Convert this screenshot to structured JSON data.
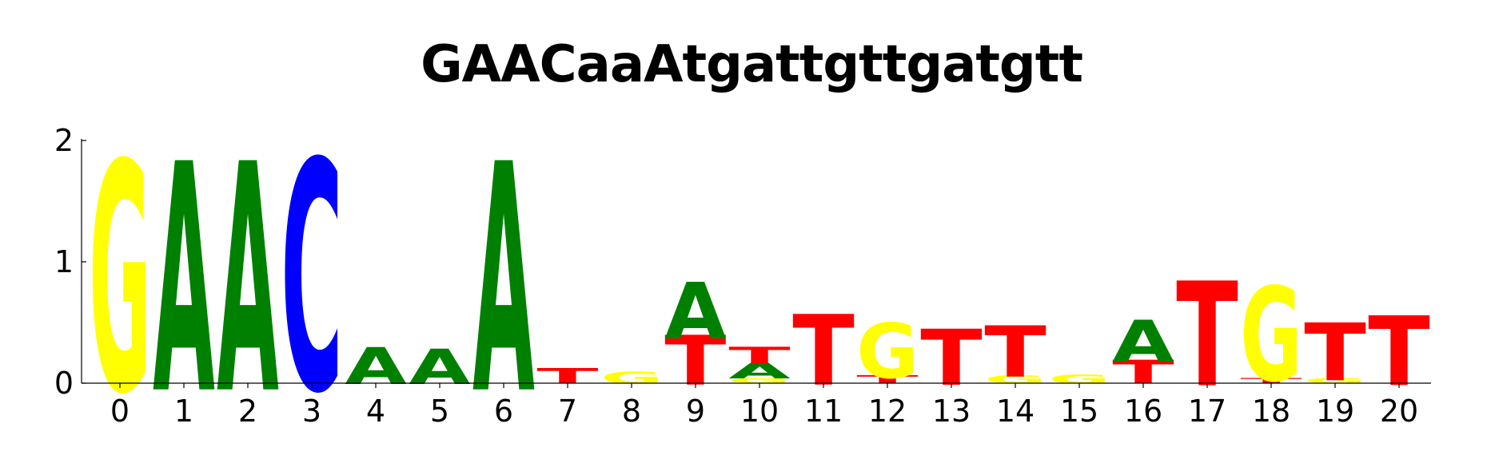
{
  "chart_data": {
    "type": "sequence-logo",
    "title": "GAACaaAtgattgttgatgtt",
    "xlabel": "",
    "ylabel": "",
    "ylim": [
      0,
      2
    ],
    "y_ticks": [
      "0",
      "1",
      "2"
    ],
    "x_ticks": [
      "0",
      "1",
      "2",
      "3",
      "4",
      "5",
      "6",
      "7",
      "8",
      "9",
      "10",
      "11",
      "12",
      "13",
      "14",
      "15",
      "16",
      "17",
      "18",
      "19",
      "20"
    ],
    "colors": {
      "A": "#008000",
      "C": "#0000ff",
      "G": "#ffff00",
      "T": "#ff0000"
    },
    "positions": [
      {
        "pos": "0",
        "stack": [
          {
            "letter": "G",
            "height": 1.75
          }
        ]
      },
      {
        "pos": "1",
        "stack": [
          {
            "letter": "A",
            "height": 1.75
          }
        ]
      },
      {
        "pos": "2",
        "stack": [
          {
            "letter": "A",
            "height": 1.75
          }
        ]
      },
      {
        "pos": "3",
        "stack": [
          {
            "letter": "C",
            "height": 1.75
          }
        ]
      },
      {
        "pos": "4",
        "stack": [
          {
            "letter": "A",
            "height": 0.28
          }
        ]
      },
      {
        "pos": "5",
        "stack": [
          {
            "letter": "A",
            "height": 0.27
          }
        ]
      },
      {
        "pos": "6",
        "stack": [
          {
            "letter": "A",
            "height": 1.75
          }
        ]
      },
      {
        "pos": "7",
        "stack": [
          {
            "letter": "T",
            "height": 0.12
          }
        ]
      },
      {
        "pos": "8",
        "stack": [
          {
            "letter": "G",
            "height": 0.09
          }
        ]
      },
      {
        "pos": "9",
        "stack": [
          {
            "letter": "T",
            "height": 0.38
          },
          {
            "letter": "A",
            "height": 0.43
          }
        ]
      },
      {
        "pos": "10",
        "stack": [
          {
            "letter": "G",
            "height": 0.04
          },
          {
            "letter": "A",
            "height": 0.12
          },
          {
            "letter": "T",
            "height": 0.13
          }
        ]
      },
      {
        "pos": "11",
        "stack": [
          {
            "letter": "T",
            "height": 0.54
          }
        ]
      },
      {
        "pos": "12",
        "stack": [
          {
            "letter": "T",
            "height": 0.06
          },
          {
            "letter": "G",
            "height": 0.42
          }
        ]
      },
      {
        "pos": "13",
        "stack": [
          {
            "letter": "T",
            "height": 0.43
          }
        ]
      },
      {
        "pos": "14",
        "stack": [
          {
            "letter": "G",
            "height": 0.06
          },
          {
            "letter": "T",
            "height": 0.39
          }
        ]
      },
      {
        "pos": "15",
        "stack": [
          {
            "letter": "G",
            "height": 0.07
          }
        ]
      },
      {
        "pos": "16",
        "stack": [
          {
            "letter": "T",
            "height": 0.18
          },
          {
            "letter": "A",
            "height": 0.32
          }
        ]
      },
      {
        "pos": "17",
        "stack": [
          {
            "letter": "T",
            "height": 0.8
          }
        ]
      },
      {
        "pos": "18",
        "stack": [
          {
            "letter": "T",
            "height": 0.04
          },
          {
            "letter": "G",
            "height": 0.72
          }
        ]
      },
      {
        "pos": "19",
        "stack": [
          {
            "letter": "G",
            "height": 0.04
          },
          {
            "letter": "T",
            "height": 0.44
          }
        ]
      },
      {
        "pos": "20",
        "stack": [
          {
            "letter": "T",
            "height": 0.53
          }
        ]
      }
    ]
  }
}
